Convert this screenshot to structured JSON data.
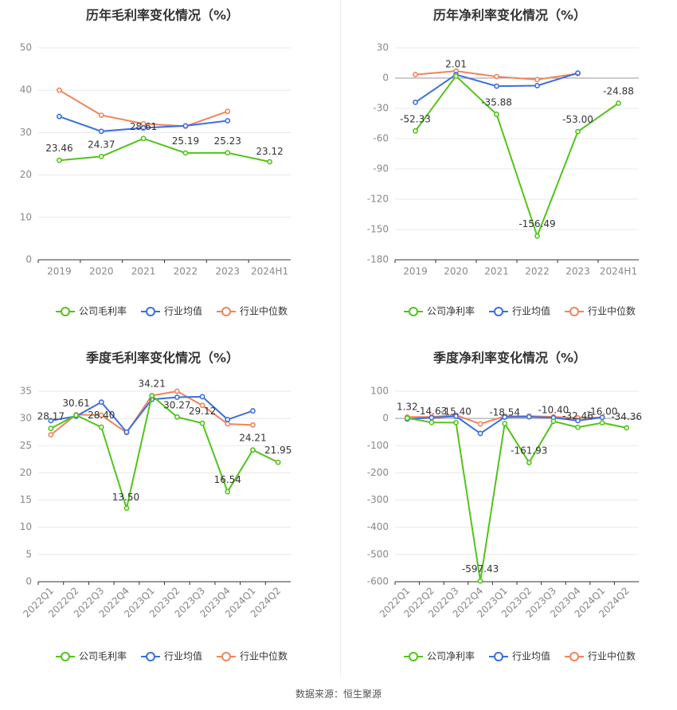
{
  "colors": {
    "company": "#52c41a",
    "industry_avg": "#3a6fe0",
    "industry_median": "#f0845c"
  },
  "source_label": "数据来源：恒生聚源",
  "chart_data": [
    {
      "type": "line",
      "title": "历年毛利率变化情况（%）",
      "categories": [
        "2019",
        "2020",
        "2021",
        "2022",
        "2023",
        "2024H1"
      ],
      "ylim": [
        0,
        50
      ],
      "yticks": [
        0,
        10,
        20,
        30,
        40,
        50
      ],
      "grid": true,
      "legend_position": "bottom",
      "series": [
        {
          "name": "公司毛利率",
          "key": "company",
          "values": [
            23.46,
            24.37,
            28.61,
            25.19,
            25.23,
            23.12
          ],
          "labels": [
            "23.46",
            "24.37",
            "28.61",
            "25.19",
            "25.23",
            "23.12"
          ]
        },
        {
          "name": "行业均值",
          "key": "industry_avg",
          "values": [
            33.8,
            30.3,
            31.1,
            31.6,
            32.8,
            null
          ]
        },
        {
          "name": "行业中位数",
          "key": "industry_median",
          "values": [
            40.0,
            34.1,
            32.1,
            31.5,
            35.0,
            null
          ]
        }
      ]
    },
    {
      "type": "line",
      "title": "历年净利率变化情况（%）",
      "categories": [
        "2019",
        "2020",
        "2021",
        "2022",
        "2023",
        "2024H1"
      ],
      "ylim": [
        -180,
        30
      ],
      "yticks": [
        -180,
        -150,
        -120,
        -90,
        -60,
        -30,
        0,
        30
      ],
      "grid": true,
      "legend_position": "bottom",
      "series": [
        {
          "name": "公司净利率",
          "key": "company",
          "values": [
            -52.33,
            2.01,
            -35.88,
            -156.49,
            -53.0,
            -24.88
          ],
          "labels": [
            "-52.33",
            "2.01",
            "-35.88",
            "-156.49",
            "-53.00",
            "-24.88"
          ]
        },
        {
          "name": "行业均值",
          "key": "industry_avg",
          "values": [
            -24.0,
            3.5,
            -8.0,
            -7.5,
            5.0,
            null
          ]
        },
        {
          "name": "行业中位数",
          "key": "industry_median",
          "values": [
            3.5,
            7.0,
            1.5,
            -1.5,
            4.5,
            null
          ]
        }
      ]
    },
    {
      "type": "line",
      "title": "季度毛利率变化情况（%）",
      "categories": [
        "2022Q1",
        "2022Q2",
        "2022Q3",
        "2022Q4",
        "2023Q1",
        "2023Q2",
        "2023Q3",
        "2023Q4",
        "2024Q1",
        "2024Q2"
      ],
      "ylim": [
        0,
        35
      ],
      "yticks": [
        0,
        5,
        10,
        15,
        20,
        25,
        30,
        35
      ],
      "grid": true,
      "legend_position": "bottom",
      "series": [
        {
          "name": "公司毛利率",
          "key": "company",
          "values": [
            28.17,
            30.61,
            28.4,
            13.5,
            34.21,
            30.27,
            29.12,
            16.54,
            24.21,
            21.95
          ],
          "labels": [
            "28.17",
            "30.61",
            "28.40",
            "13.50",
            "34.21",
            "30.27",
            "29.12",
            "16.54",
            "24.21",
            "21.95"
          ]
        },
        {
          "name": "行业均值",
          "key": "industry_avg",
          "values": [
            29.6,
            30.4,
            33.0,
            27.5,
            33.5,
            33.9,
            34.0,
            29.8,
            31.4,
            null
          ]
        },
        {
          "name": "行业中位数",
          "key": "industry_median",
          "values": [
            27.0,
            30.7,
            30.6,
            27.4,
            34.2,
            35.0,
            32.4,
            29.0,
            28.8,
            null
          ]
        }
      ]
    },
    {
      "type": "line",
      "title": "季度净利率变化情况（%）",
      "categories": [
        "2022Q1",
        "2022Q2",
        "2022Q3",
        "2022Q4",
        "2023Q1",
        "2023Q2",
        "2023Q3",
        "2023Q4",
        "2024Q1",
        "2024Q2"
      ],
      "ylim": [
        -600,
        100
      ],
      "yticks": [
        -600,
        -500,
        -400,
        -300,
        -200,
        -100,
        0,
        100
      ],
      "grid": true,
      "legend_position": "bottom",
      "series": [
        {
          "name": "公司净利率",
          "key": "company",
          "values": [
            1.32,
            -14.63,
            -15.4,
            -597.43,
            -18.54,
            -161.93,
            -10.4,
            -32.46,
            -16.0,
            -34.36
          ],
          "labels": [
            "1.32",
            "-14.63",
            "-15.40",
            "-597.43",
            "-18.54",
            "-161.93",
            "-10.40",
            "-32.46",
            "-16.00",
            "-34.36"
          ]
        },
        {
          "name": "行业均值",
          "key": "industry_avg",
          "values": [
            -2.0,
            3.0,
            8.0,
            -55.0,
            5.0,
            6.0,
            3.0,
            -8.0,
            4.0,
            null
          ]
        },
        {
          "name": "行业中位数",
          "key": "industry_median",
          "values": [
            5.0,
            6.0,
            12.0,
            -20.0,
            8.0,
            9.0,
            6.0,
            2.0,
            4.0,
            null
          ]
        }
      ]
    }
  ]
}
